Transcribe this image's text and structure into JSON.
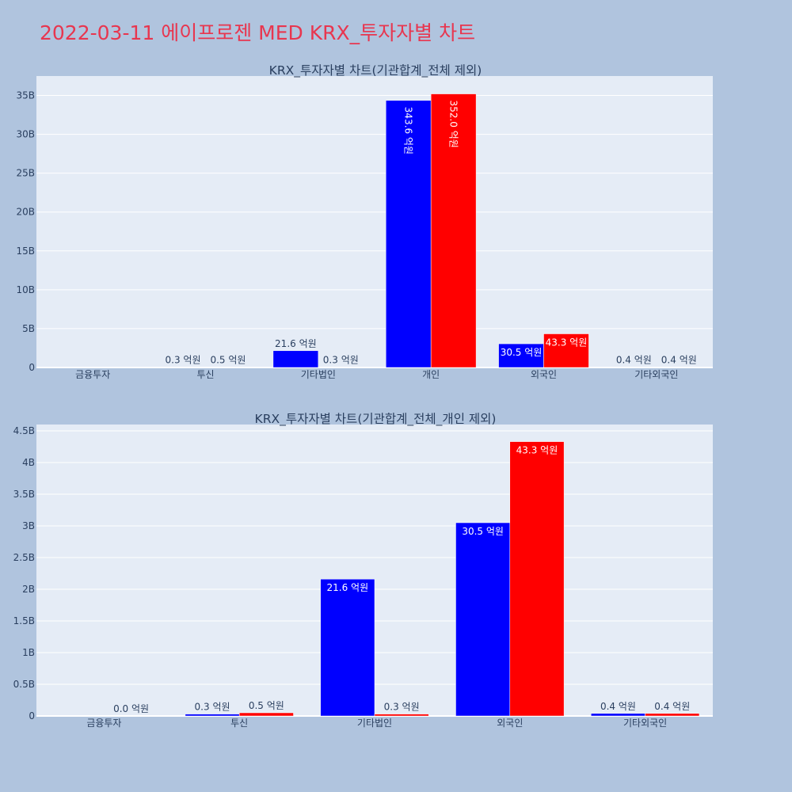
{
  "page": {
    "title": "2022-03-11 에이프로젠 MED KRX_투자자별 차트"
  },
  "colors": {
    "background": "#b0c4de",
    "plot_background": "#e5ecf6",
    "title": "#e8364f",
    "series_1": "#0000ff",
    "series_2": "#ff0000",
    "text": "#2a3f5f"
  },
  "chart_data": [
    {
      "type": "bar",
      "title": "KRX_투자자별 차트(기관합계_전체 제외)",
      "categories": [
        "금융투자",
        "투신",
        "기타법인",
        "개인",
        "외국인",
        "기타외국인"
      ],
      "series": [
        {
          "values": [
            0.0,
            0.03,
            2.16,
            34.36,
            3.05,
            0.04
          ],
          "labels": [
            "",
            "0.3 억원",
            "21.6 억원",
            "343.6 억원",
            "30.5 억원",
            "0.4 억원"
          ]
        },
        {
          "values": [
            0.0,
            0.05,
            0.03,
            35.2,
            4.33,
            0.04
          ],
          "labels": [
            "",
            "0.5 억원",
            "0.3 억원",
            "352.0 억원",
            "43.3 억원",
            "0.4 억원"
          ]
        }
      ],
      "ylim": [
        0,
        37.5
      ],
      "yticks": [
        0,
        5,
        10,
        15,
        20,
        25,
        30,
        35
      ],
      "ytick_labels": [
        "0",
        "5B",
        "10B",
        "15B",
        "20B",
        "25B",
        "30B",
        "35B"
      ],
      "grid": true
    },
    {
      "type": "bar",
      "title": "KRX_투자자별 차트(기관합계_전체_개인 제외)",
      "categories": [
        "금융투자",
        "투신",
        "기타법인",
        "외국인",
        "기타외국인"
      ],
      "series": [
        {
          "values": [
            0.0,
            0.03,
            2.16,
            3.05,
            0.04
          ],
          "labels": [
            "",
            "0.3 억원",
            "21.6 억원",
            "30.5 억원",
            "0.4 억원"
          ]
        },
        {
          "values": [
            0.0,
            0.05,
            0.03,
            4.33,
            0.04
          ],
          "labels": [
            "0.0 억원",
            "0.5 억원",
            "0.3 억원",
            "43.3 억원",
            "0.4 억원"
          ]
        }
      ],
      "ylim": [
        0,
        4.6
      ],
      "yticks": [
        0,
        0.5,
        1,
        1.5,
        2,
        2.5,
        3,
        3.5,
        4,
        4.5
      ],
      "ytick_labels": [
        "0",
        "0.5B",
        "1B",
        "1.5B",
        "2B",
        "2.5B",
        "3B",
        "3.5B",
        "4B",
        "4.5B"
      ],
      "grid": true
    }
  ]
}
